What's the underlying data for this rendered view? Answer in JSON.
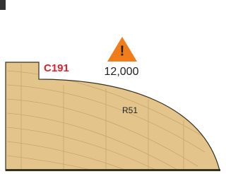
{
  "labels": {
    "model": "C191",
    "warning": "!",
    "rpm": "12,000",
    "radius": "R51"
  }
}
